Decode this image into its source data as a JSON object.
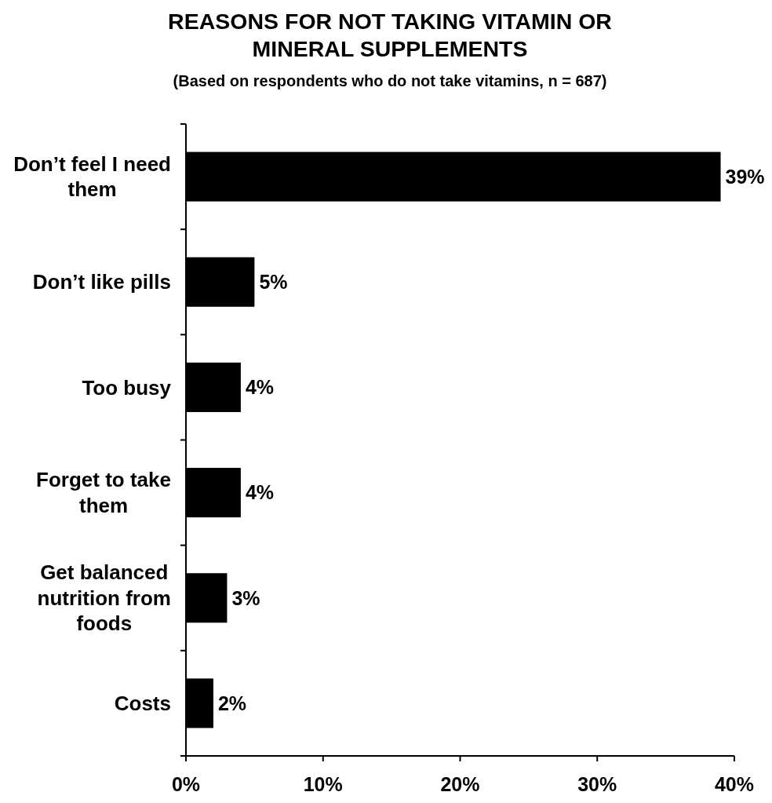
{
  "chart_data": {
    "type": "bar",
    "orientation": "horizontal",
    "title": "REASONS FOR NOT TAKING VITAMIN OR MINERAL SUPPLEMENTS",
    "subtitle": "(Based on respondents who do not take vitamins, n = 687)",
    "categories": [
      "Don’t feel I need them",
      "Don’t like pills",
      "Too busy",
      "Forget to take them",
      "Get balanced nutrition from foods",
      "Costs"
    ],
    "values": [
      39,
      5,
      4,
      4,
      3,
      2
    ],
    "color": "#000000",
    "value_labels": [
      "39%",
      "5%",
      "4%",
      "4%",
      "3%",
      "2%"
    ],
    "xlim": [
      0,
      40
    ],
    "xticks": [
      {
        "value": 0,
        "label": "0%"
      },
      {
        "value": 10,
        "label": "10%"
      },
      {
        "value": 20,
        "label": "20%"
      },
      {
        "value": 30,
        "label": "30%"
      },
      {
        "value": 40,
        "label": "40%"
      }
    ]
  }
}
